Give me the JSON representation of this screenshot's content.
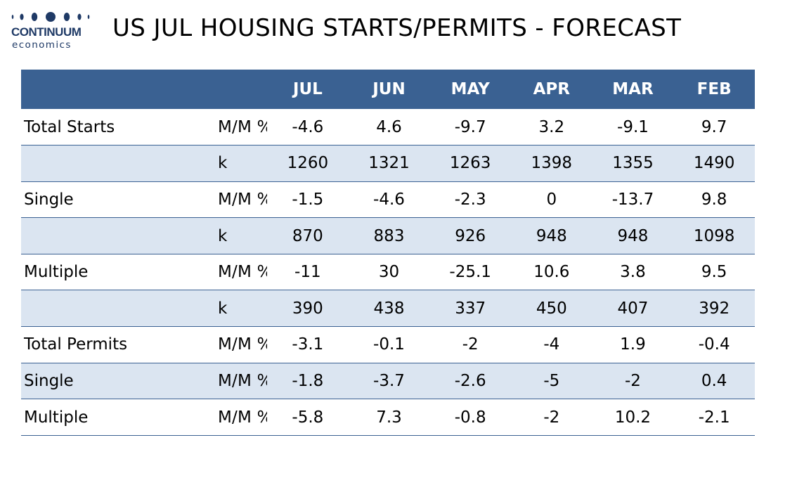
{
  "logo": {
    "name": "CONTINUUM",
    "sub": "economics"
  },
  "title": "US JUL HOUSING STARTS/PERMITS - FORECAST",
  "colors": {
    "header_bg": "#3a6192",
    "header_text": "#ffffff",
    "shaded_row": "#dbe5f1",
    "rule": "#3a6192",
    "logo": "#1f3a66"
  },
  "table": {
    "columns": [
      "JUL",
      "JUN",
      "MAY",
      "APR",
      "MAR",
      "FEB"
    ],
    "rows": [
      {
        "label": "Total Starts",
        "unit": "M/M %",
        "values": [
          "-4.6",
          "4.6",
          "-9.7",
          "3.2",
          "-9.1",
          "9.7"
        ],
        "shaded": false
      },
      {
        "label": "",
        "unit": "k",
        "values": [
          "1260",
          "1321",
          "1263",
          "1398",
          "1355",
          "1490"
        ],
        "shaded": true
      },
      {
        "label": "Single",
        "unit": "M/M %",
        "values": [
          "-1.5",
          "-4.6",
          "-2.3",
          "0",
          "-13.7",
          "9.8"
        ],
        "shaded": false
      },
      {
        "label": "",
        "unit": "k",
        "values": [
          "870",
          "883",
          "926",
          "948",
          "948",
          "1098"
        ],
        "shaded": true
      },
      {
        "label": "Multiple",
        "unit": "M/M %",
        "values": [
          "-11",
          "30",
          "-25.1",
          "10.6",
          "3.8",
          "9.5"
        ],
        "shaded": false
      },
      {
        "label": "",
        "unit": "k",
        "values": [
          "390",
          "438",
          "337",
          "450",
          "407",
          "392"
        ],
        "shaded": true
      },
      {
        "label": "Total Permits",
        "unit": "M/M %",
        "values": [
          "-3.1",
          "-0.1",
          "-2",
          "-4",
          "1.9",
          "-0.4"
        ],
        "shaded": false
      },
      {
        "label": "Single",
        "unit": "M/M %",
        "values": [
          "-1.8",
          "-3.7",
          "-2.6",
          "-5",
          "-2",
          "0.4"
        ],
        "shaded": true
      },
      {
        "label": "Multiple",
        "unit": "M/M %",
        "values": [
          "-5.8",
          "7.3",
          "-0.8",
          "-2",
          "10.2",
          "-2.1"
        ],
        "shaded": false
      }
    ]
  }
}
